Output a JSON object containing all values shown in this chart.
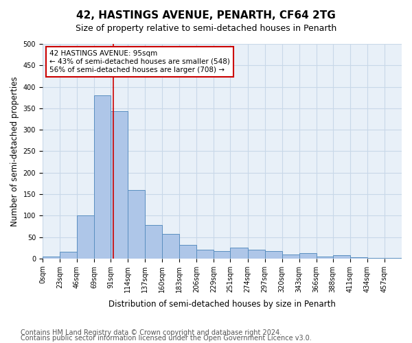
{
  "title": "42, HASTINGS AVENUE, PENARTH, CF64 2TG",
  "subtitle": "Size of property relative to semi-detached houses in Penarth",
  "xlabel": "Distribution of semi-detached houses by size in Penarth",
  "ylabel": "Number of semi-detached properties",
  "footnote1": "Contains HM Land Registry data © Crown copyright and database right 2024.",
  "footnote2": "Contains public sector information licensed under the Open Government Licence v3.0.",
  "bin_labels": [
    "0sqm",
    "23sqm",
    "46sqm",
    "69sqm",
    "91sqm",
    "114sqm",
    "137sqm",
    "160sqm",
    "183sqm",
    "206sqm",
    "229sqm",
    "251sqm",
    "274sqm",
    "297sqm",
    "320sqm",
    "343sqm",
    "366sqm",
    "388sqm",
    "411sqm",
    "434sqm",
    "457sqm"
  ],
  "bin_edges": [
    0,
    23,
    46,
    69,
    91,
    114,
    137,
    160,
    183,
    206,
    229,
    251,
    274,
    297,
    320,
    343,
    366,
    388,
    411,
    434,
    457,
    480
  ],
  "bar_heights": [
    5,
    15,
    100,
    380,
    343,
    160,
    78,
    57,
    32,
    20,
    18,
    25,
    20,
    18,
    10,
    12,
    4,
    7,
    3,
    1,
    2
  ],
  "bar_color": "#aec6e8",
  "bar_edge_color": "#5a8fc0",
  "property_size": 95,
  "annotation_box_text": "42 HASTINGS AVENUE: 95sqm\n← 43% of semi-detached houses are smaller (548)\n56% of semi-detached houses are larger (708) →",
  "annotation_box_color": "#ffffff",
  "annotation_box_edge_color": "#cc0000",
  "vline_color": "#cc0000",
  "ylim": [
    0,
    500
  ],
  "grid_color": "#c8d8e8",
  "background_color": "#e8f0f8",
  "title_fontsize": 11,
  "subtitle_fontsize": 9,
  "xlabel_fontsize": 8.5,
  "ylabel_fontsize": 8.5,
  "tick_fontsize": 7,
  "annotation_fontsize": 7.5,
  "footnote_fontsize": 7
}
